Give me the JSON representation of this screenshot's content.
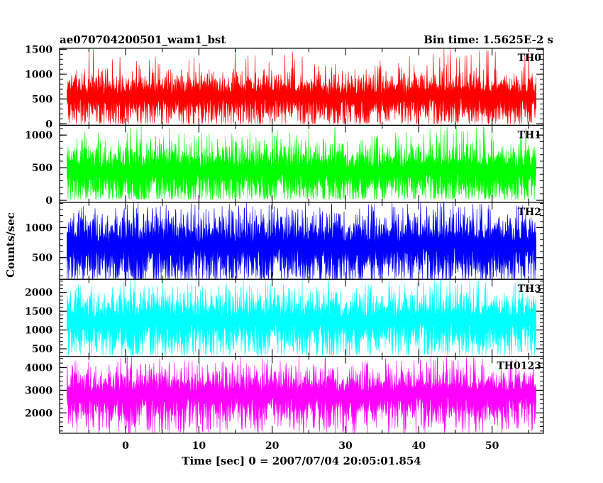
{
  "header": {
    "title_left": "ae070704200501_wam1_bst",
    "title_right": "Bin time: 1.5625E-2 s"
  },
  "chart_data": {
    "type": "line",
    "xlabel": "Time [sec] 0 = 2007/07/04 20:05:01.854",
    "ylabel": "Counts/sec",
    "xlim": [
      -9,
      57
    ],
    "data_range": [
      -8,
      56
    ],
    "xticks": [
      "0",
      "10",
      "20",
      "30",
      "40",
      "50"
    ],
    "series": [
      {
        "name": "TH0",
        "color": "#ff0000",
        "ylim": [
          -30,
          1520
        ],
        "yticks": [
          0,
          500,
          1000,
          1500
        ],
        "ytick_labels": [
          "0",
          "500",
          "1000",
          "1500"
        ],
        "envelope": {
          "low": [
            0,
            60
          ],
          "center": 550,
          "spread": 250,
          "high": [
            1050,
            1520
          ]
        }
      },
      {
        "name": "TH1",
        "color": "#00ff00",
        "ylim": [
          -30,
          1150
        ],
        "yticks": [
          0,
          500,
          1000
        ],
        "ytick_labels": [
          "0",
          "500",
          "1000"
        ],
        "envelope": {
          "low": [
            20,
            90
          ],
          "center": 450,
          "spread": 220,
          "high": [
            850,
            1150
          ]
        }
      },
      {
        "name": "TH2",
        "color": "#0000ff",
        "ylim": [
          140,
          1420
        ],
        "yticks": [
          500,
          1000
        ],
        "ytick_labels": [
          "500",
          "1000"
        ],
        "envelope": {
          "low": [
            140,
            220
          ],
          "center": 700,
          "spread": 280,
          "high": [
            1150,
            1420
          ]
        }
      },
      {
        "name": "TH3",
        "color": "#00ffff",
        "ylim": [
          300,
          2350
        ],
        "yticks": [
          500,
          1000,
          1500,
          2000
        ],
        "ytick_labels": [
          "500",
          "1000",
          "1500",
          "2000"
        ],
        "envelope": {
          "low": [
            320,
            450
          ],
          "center": 1250,
          "spread": 400,
          "high": [
            1900,
            2350
          ]
        }
      },
      {
        "name": "TH0123",
        "color": "#ff00ff",
        "ylim": [
          1100,
          4500
        ],
        "yticks": [
          2000,
          3000,
          4000
        ],
        "ytick_labels": [
          "2000",
          "3000",
          "4000"
        ],
        "envelope": {
          "low": [
            1100,
            1400
          ],
          "center": 2800,
          "spread": 600,
          "high": [
            3900,
            4500
          ]
        }
      }
    ]
  }
}
